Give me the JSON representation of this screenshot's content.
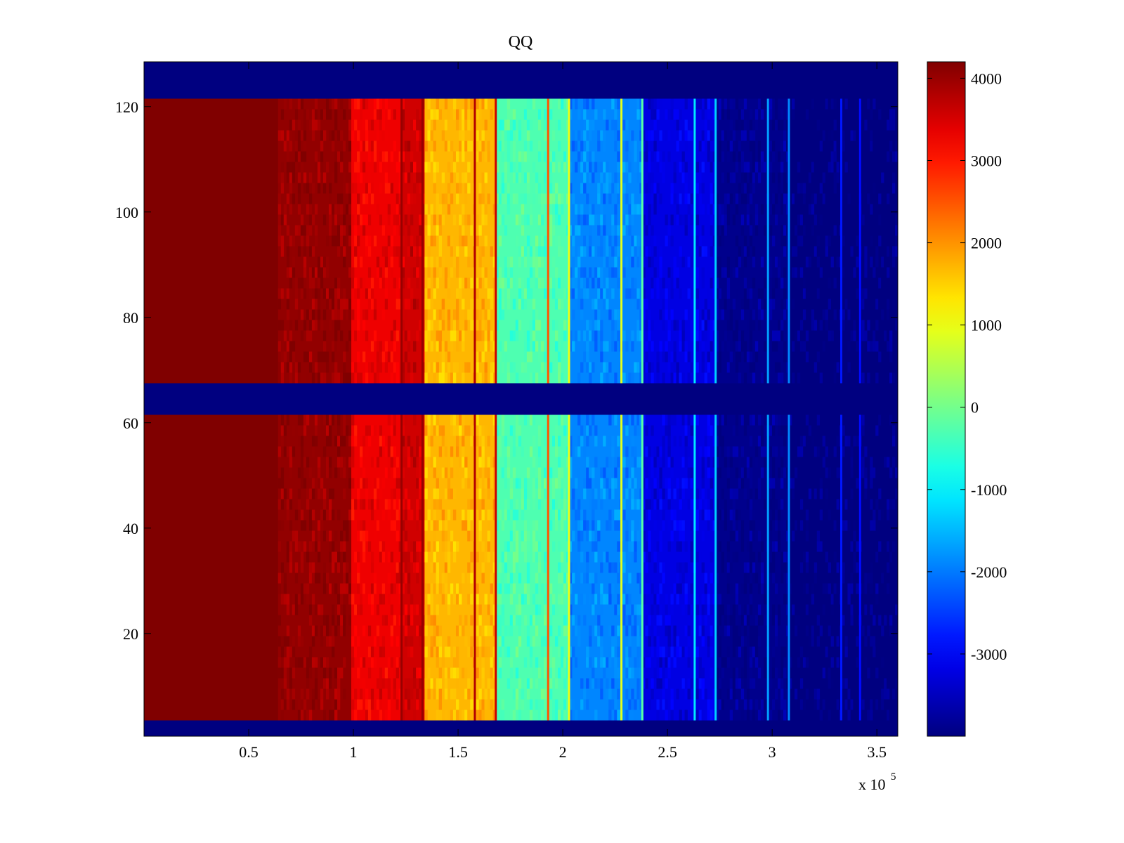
{
  "chart_data": {
    "type": "heatmap",
    "title": "QQ",
    "xlabel": "",
    "ylabel": "",
    "x_exponent_label": "x 10",
    "x_exponent_power": "5",
    "xlim": [
      0,
      3.6
    ],
    "ylim": [
      0.5,
      128.5
    ],
    "x_ticks": [
      0.5,
      1,
      1.5,
      2,
      2.5,
      3,
      3.5
    ],
    "x_tick_labels": [
      "0.5",
      "1",
      "1.5",
      "2",
      "2.5",
      "3",
      "3.5"
    ],
    "y_ticks": [
      20,
      40,
      60,
      80,
      100,
      120
    ],
    "y_tick_labels": [
      "20",
      "40",
      "60",
      "80",
      "100",
      "120"
    ],
    "colormap": "jet",
    "clim": [
      -4000,
      4200
    ],
    "colorbar_ticks": [
      -3000,
      -2000,
      -1000,
      0,
      1000,
      2000,
      3000,
      4000
    ],
    "colorbar_tick_labels": [
      "-3000",
      "-2000",
      "-1000",
      "0",
      "1000",
      "2000",
      "3000",
      "4000"
    ],
    "row_groups": [
      {
        "y_from": 4,
        "y_to": 61,
        "state": "data"
      },
      {
        "y_from": 62,
        "y_to": 67,
        "state": "min"
      },
      {
        "y_from": 68,
        "y_to": 121,
        "state": "data"
      },
      {
        "y_from": 1,
        "y_to": 3,
        "state": "min"
      },
      {
        "y_from": 122,
        "y_to": 128,
        "state": "min"
      }
    ],
    "column_bands": [
      {
        "x_from": 0.0,
        "x_to": 0.64,
        "value": 4200
      },
      {
        "x_from": 0.64,
        "x_to": 0.99,
        "value": 4050
      },
      {
        "x_from": 0.99,
        "x_to": 1.23,
        "value": 3300
      },
      {
        "x_from": 1.23,
        "x_to": 1.34,
        "value": 3550
      },
      {
        "x_from": 1.34,
        "x_to": 1.68,
        "value": 1700
      },
      {
        "x_from": 1.68,
        "x_to": 2.03,
        "value": -300
      },
      {
        "x_from": 2.03,
        "x_to": 2.38,
        "value": -1900
      },
      {
        "x_from": 2.38,
        "x_to": 2.73,
        "value": -3200
      },
      {
        "x_from": 2.73,
        "x_to": 3.08,
        "value": -3900
      },
      {
        "x_from": 3.08,
        "x_to": 3.6,
        "value": -4000
      }
    ],
    "spectral_lines": [
      {
        "x": 1.23,
        "value": 4000
      },
      {
        "x": 1.33,
        "value": 4000
      },
      {
        "x": 1.58,
        "value": 3800
      },
      {
        "x": 1.68,
        "value": 3600
      },
      {
        "x": 1.93,
        "value": 2500
      },
      {
        "x": 2.03,
        "value": 1000
      },
      {
        "x": 2.28,
        "value": 900
      },
      {
        "x": 2.38,
        "value": -200
      },
      {
        "x": 2.63,
        "value": -1100
      },
      {
        "x": 2.73,
        "value": -1300
      },
      {
        "x": 2.98,
        "value": -1700
      },
      {
        "x": 3.08,
        "value": -1900
      },
      {
        "x": 3.33,
        "value": -2800
      },
      {
        "x": 3.42,
        "value": -2900
      }
    ]
  }
}
